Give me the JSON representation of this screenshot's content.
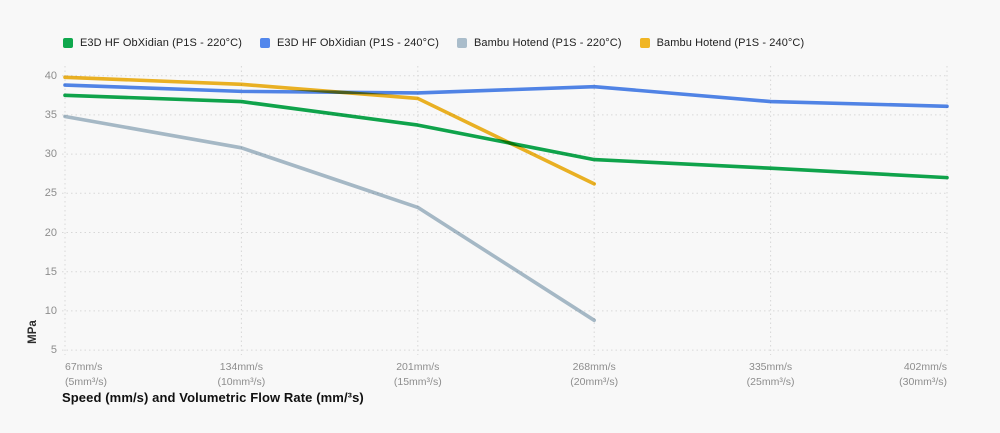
{
  "chart_data": {
    "type": "line",
    "title": "",
    "xlabel": "Speed (mm/s) and Volumetric Flow Rate (mm/³s)",
    "ylabel": "MPa",
    "x_ticks": [
      {
        "label": "67mm/s",
        "sublabel": "(5mm³/s)"
      },
      {
        "label": "134mm/s",
        "sublabel": "(10mm³/s)"
      },
      {
        "label": "201mm/s",
        "sublabel": "(15mm³/s)"
      },
      {
        "label": "268mm/s",
        "sublabel": "(20mm³/s)"
      },
      {
        "label": "335mm/s",
        "sublabel": "(25mm³/s)"
      },
      {
        "label": "402mm/s",
        "sublabel": "(30mm³/s)"
      }
    ],
    "y_ticks": [
      5,
      10,
      15,
      20,
      25,
      30,
      35,
      40
    ],
    "ylim": [
      4,
      42
    ],
    "grid": "dotted",
    "legend_position": "top",
    "series": [
      {
        "name": "E3D HF ObXidian (P1S - 220°C)",
        "color": "#0FA84D",
        "values": [
          37.5,
          36.7,
          33.7,
          29.3,
          28.2,
          27.0
        ]
      },
      {
        "name": "E3D HF ObXidian (P1S - 240°C)",
        "color": "#5287EC",
        "values": [
          38.8,
          38.0,
          37.8,
          38.6,
          36.7,
          36.1
        ]
      },
      {
        "name": "Bambu Hotend (P1S - 220°C)",
        "color": "#AABDCB",
        "values": [
          34.8,
          30.8,
          23.2,
          8.8,
          null,
          null
        ]
      },
      {
        "name": "Bambu Hotend (P1S - 240°C)",
        "color": "#F0B524",
        "values": [
          39.8,
          38.9,
          37.1,
          26.2,
          null,
          null
        ]
      }
    ]
  },
  "colors": {
    "background": "#f8f8f8",
    "gridline": "#d7d7d7",
    "tick_text": "#8d8d8d",
    "axis_title": "#101010"
  }
}
